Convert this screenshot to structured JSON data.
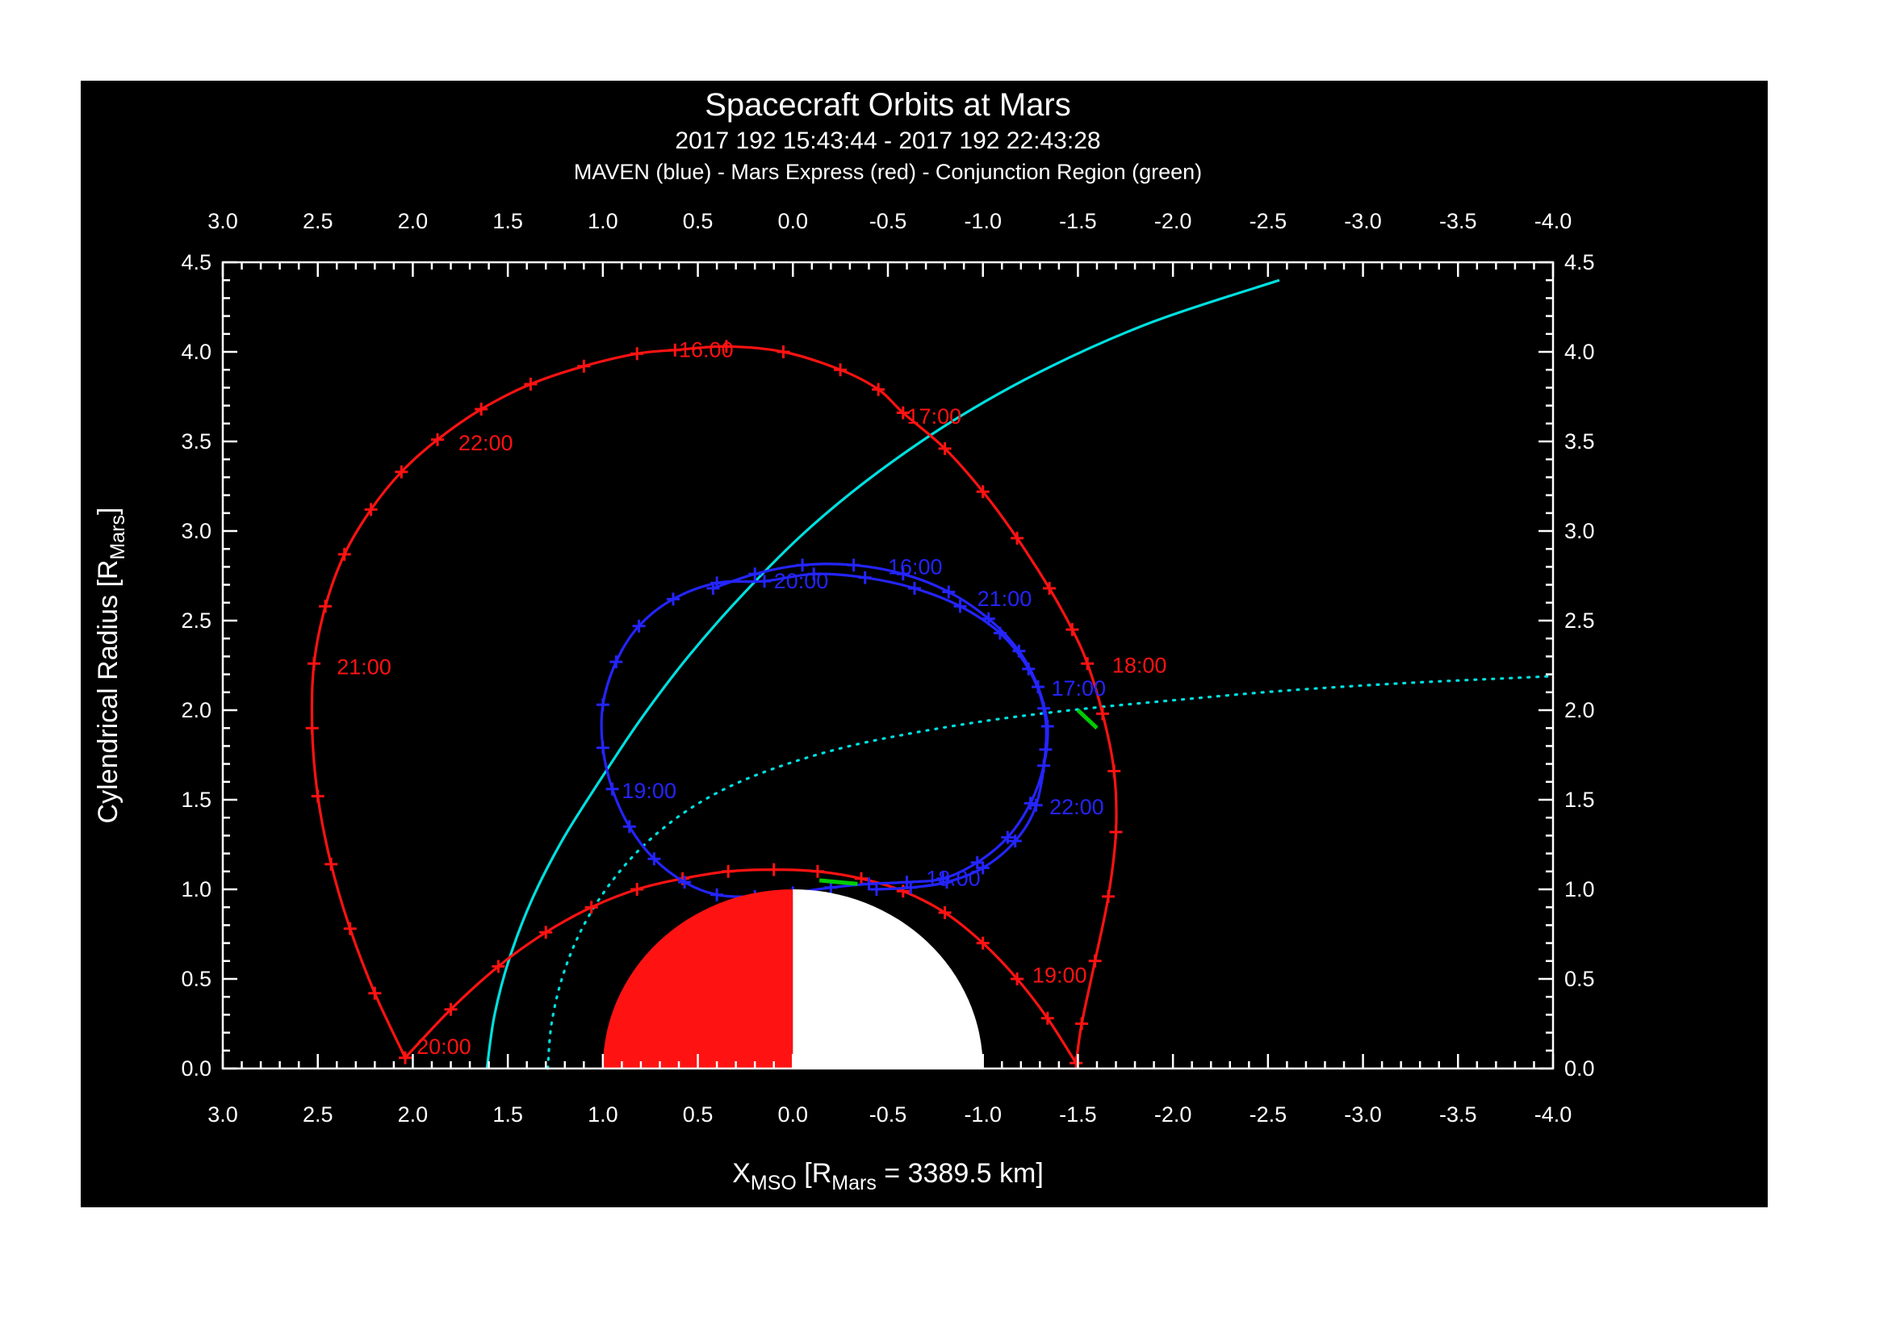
{
  "chart_data": {
    "type": "line",
    "title": "Spacecraft Orbits at Mars",
    "subtitle": "2017 192 15:43:44 - 2017 192 22:43:28",
    "legend_line": "MAVEN (blue) - Mars Express (red) - Conjunction Region (green)",
    "xlabel_parts": [
      {
        "text": "X",
        "sub": false
      },
      {
        "text": "MSO",
        "sub": true
      },
      {
        "text": " [R",
        "sub": false
      },
      {
        "text": "Mars",
        "sub": true
      },
      {
        "text": " = 3389.5 km]",
        "sub": false
      }
    ],
    "ylabel_parts": [
      {
        "text": "Cylendrical Radius [R",
        "sub": false
      },
      {
        "text": "Mars",
        "sub": true
      },
      {
        "text": "]",
        "sub": false
      }
    ],
    "x_axis": {
      "min": 3.0,
      "max": -4.0,
      "minor_step": 0.1,
      "tick_values": [
        3.0,
        2.5,
        2.0,
        1.5,
        1.0,
        0.5,
        0.0,
        -0.5,
        -1.0,
        -1.5,
        -2.0,
        -2.5,
        -3.0,
        -3.5,
        -4.0
      ],
      "tick_labels": [
        "3.0",
        "2.5",
        "2.0",
        "1.5",
        "1.0",
        "0.5",
        "0.0",
        "-0.5",
        "-1.0",
        "-1.5",
        "-2.0",
        "-2.5",
        "-3.0",
        "-3.5",
        "-4.0"
      ]
    },
    "y_axis": {
      "min": 0.0,
      "max": 4.5,
      "minor_step": 0.1,
      "tick_values": [
        0.0,
        0.5,
        1.0,
        1.5,
        2.0,
        2.5,
        3.0,
        3.5,
        4.0,
        4.5
      ],
      "tick_labels": [
        "0.0",
        "0.5",
        "1.0",
        "1.5",
        "2.0",
        "2.5",
        "3.0",
        "3.5",
        "4.0",
        "4.5"
      ]
    },
    "colors": {
      "page": "#ffffff",
      "background": "#000000",
      "frame": "#ffffff",
      "text": "#ffffff",
      "maven": "#2424ff",
      "mars_express": "#ff1212",
      "boundary": "#00e0e0",
      "conjunction": "#00cc00",
      "mars_dayside": "#ff1212",
      "mars_nightside": "#ffffff"
    },
    "mars": {
      "radius": 1.0,
      "center_x": 0.0,
      "center_r": 0.0
    },
    "series": [
      {
        "name": "mars-express-orbit",
        "spacecraft": "Mars Express",
        "color_key": "mars_express",
        "style": "solid",
        "marker": "plus",
        "segments": [
          [
            [
              0.62,
              4.01
            ],
            [
              0.35,
              4.03
            ],
            [
              0.05,
              4.0
            ],
            [
              -0.25,
              3.9
            ],
            [
              -0.45,
              3.79
            ],
            [
              -0.58,
              3.66
            ],
            [
              -0.8,
              3.46
            ],
            [
              -1.0,
              3.22
            ],
            [
              -1.18,
              2.96
            ],
            [
              -1.35,
              2.68
            ],
            [
              -1.47,
              2.45
            ],
            [
              -1.55,
              2.26
            ],
            [
              -1.63,
              1.98
            ],
            [
              -1.69,
              1.66
            ],
            [
              -1.7,
              1.32
            ],
            [
              -1.66,
              0.96
            ],
            [
              -1.59,
              0.6
            ],
            [
              -1.52,
              0.25
            ],
            [
              -1.49,
              0.03
            ]
          ],
          [
            [
              -1.49,
              0.03
            ],
            [
              -1.34,
              0.28
            ],
            [
              -1.18,
              0.5
            ],
            [
              -1.0,
              0.7
            ],
            [
              -0.8,
              0.87
            ],
            [
              -0.58,
              0.99
            ],
            [
              -0.36,
              1.06
            ],
            [
              -0.13,
              1.1
            ],
            [
              0.1,
              1.11
            ],
            [
              0.34,
              1.1
            ],
            [
              0.58,
              1.06
            ],
            [
              0.82,
              1.0
            ],
            [
              1.06,
              0.9
            ],
            [
              1.3,
              0.76
            ],
            [
              1.55,
              0.57
            ],
            [
              1.8,
              0.33
            ],
            [
              2.04,
              0.06
            ]
          ],
          [
            [
              2.04,
              0.06
            ],
            [
              2.2,
              0.42
            ],
            [
              2.33,
              0.78
            ],
            [
              2.43,
              1.14
            ],
            [
              2.5,
              1.52
            ],
            [
              2.53,
              1.9
            ],
            [
              2.52,
              2.26
            ],
            [
              2.46,
              2.58
            ],
            [
              2.36,
              2.87
            ],
            [
              2.22,
              3.12
            ],
            [
              2.06,
              3.33
            ],
            [
              1.87,
              3.51
            ],
            [
              1.64,
              3.68
            ],
            [
              1.38,
              3.82
            ],
            [
              1.1,
              3.92
            ],
            [
              0.82,
              3.99
            ],
            [
              0.62,
              4.01
            ]
          ]
        ],
        "time_labels": [
          {
            "text": "16:00",
            "x": 0.6,
            "r": 3.97
          },
          {
            "text": "17:00",
            "x": -0.6,
            "r": 3.6
          },
          {
            "text": "18:00",
            "x": -1.68,
            "r": 2.21
          },
          {
            "text": "19:00",
            "x": -1.26,
            "r": 0.48
          },
          {
            "text": "20:00",
            "x": 1.98,
            "r": 0.08
          },
          {
            "text": "21:00",
            "x": 2.4,
            "r": 2.2
          },
          {
            "text": "22:00",
            "x": 1.76,
            "r": 3.45
          }
        ]
      },
      {
        "name": "maven-orbit",
        "spacecraft": "MAVEN",
        "color_key": "maven",
        "style": "solid",
        "marker": "plus",
        "segments": [
          [
            [
              0.42,
              2.68
            ],
            [
              0.2,
              2.76
            ],
            [
              -0.05,
              2.81
            ],
            [
              -0.32,
              2.81
            ],
            [
              -0.58,
              2.76
            ],
            [
              -0.82,
              2.66
            ],
            [
              -1.03,
              2.51
            ],
            [
              -1.19,
              2.33
            ],
            [
              -1.29,
              2.13
            ],
            [
              -1.34,
              1.91
            ],
            [
              -1.32,
              1.69
            ],
            [
              -1.25,
              1.48
            ],
            [
              -1.13,
              1.29
            ],
            [
              -0.97,
              1.15
            ],
            [
              -0.79,
              1.06
            ],
            [
              -0.6,
              1.04
            ],
            [
              -0.4,
              1.03
            ],
            [
              -0.2,
              1.01
            ],
            [
              0.0,
              0.98
            ],
            [
              0.2,
              0.96
            ],
            [
              0.4,
              0.97
            ],
            [
              0.57,
              1.04
            ],
            [
              0.73,
              1.17
            ],
            [
              0.86,
              1.35
            ],
            [
              0.95,
              1.56
            ],
            [
              1.0,
              1.79
            ],
            [
              1.0,
              2.03
            ],
            [
              0.93,
              2.27
            ],
            [
              0.81,
              2.47
            ],
            [
              0.63,
              2.62
            ],
            [
              0.4,
              2.71
            ],
            [
              0.15,
              2.72
            ],
            [
              -0.11,
              2.76
            ],
            [
              -0.38,
              2.74
            ],
            [
              -0.64,
              2.68
            ],
            [
              -0.88,
              2.58
            ],
            [
              -1.09,
              2.43
            ],
            [
              -1.24,
              2.23
            ],
            [
              -1.32,
              2.01
            ],
            [
              -1.33,
              1.78
            ],
            [
              -1.28,
              1.47
            ],
            [
              -1.17,
              1.27
            ],
            [
              -1.0,
              1.12
            ],
            [
              -0.81,
              1.04
            ],
            [
              -0.62,
              1.01
            ],
            [
              -0.44,
              1.0
            ]
          ]
        ],
        "time_labels": [
          {
            "text": "16:00",
            "x": -0.5,
            "r": 2.76
          },
          {
            "text": "17:00",
            "x": -1.36,
            "r": 2.08
          },
          {
            "text": "18:00",
            "x": -0.7,
            "r": 1.02
          },
          {
            "text": "19:00",
            "x": 0.9,
            "r": 1.51
          },
          {
            "text": "20:00",
            "x": 0.1,
            "r": 2.68
          },
          {
            "text": "21:00",
            "x": -0.97,
            "r": 2.58
          },
          {
            "text": "22:00",
            "x": -1.35,
            "r": 1.42
          }
        ]
      },
      {
        "name": "bow-shock",
        "color_key": "boundary",
        "style": "solid",
        "marker": "none",
        "segments": [
          [
            [
              1.61,
              0.0
            ],
            [
              1.57,
              0.3
            ],
            [
              1.49,
              0.62
            ],
            [
              1.37,
              0.95
            ],
            [
              1.21,
              1.28
            ],
            [
              1.02,
              1.6
            ],
            [
              0.8,
              1.95
            ],
            [
              0.55,
              2.3
            ],
            [
              0.26,
              2.65
            ],
            [
              -0.07,
              3.0
            ],
            [
              -0.45,
              3.33
            ],
            [
              -0.88,
              3.64
            ],
            [
              -1.36,
              3.92
            ],
            [
              -1.9,
              4.17
            ],
            [
              -2.56,
              4.4
            ]
          ]
        ],
        "time_labels": []
      },
      {
        "name": "boundary-dotted",
        "color_key": "boundary",
        "style": "dotted",
        "marker": "none",
        "segments": [
          [
            [
              1.29,
              0.0
            ],
            [
              1.27,
              0.25
            ],
            [
              1.21,
              0.52
            ],
            [
              1.11,
              0.78
            ],
            [
              0.97,
              1.02
            ],
            [
              0.79,
              1.24
            ],
            [
              0.57,
              1.43
            ],
            [
              0.32,
              1.58
            ],
            [
              0.03,
              1.7
            ],
            [
              -0.3,
              1.8
            ],
            [
              -0.67,
              1.88
            ],
            [
              -1.08,
              1.95
            ],
            [
              -1.55,
              2.01
            ],
            [
              -2.05,
              2.06
            ],
            [
              -2.6,
              2.11
            ],
            [
              -3.2,
              2.15
            ],
            [
              -3.8,
              2.18
            ],
            [
              -4.0,
              2.19
            ]
          ]
        ],
        "time_labels": []
      },
      {
        "name": "conjunction-region",
        "color_key": "conjunction",
        "style": "solid",
        "marker": "none",
        "segments": [
          [
            [
              -1.5,
              2.0
            ],
            [
              -1.6,
              1.9
            ]
          ],
          [
            [
              -0.14,
              1.05
            ],
            [
              -0.34,
              1.03
            ]
          ]
        ],
        "time_labels": []
      }
    ]
  }
}
